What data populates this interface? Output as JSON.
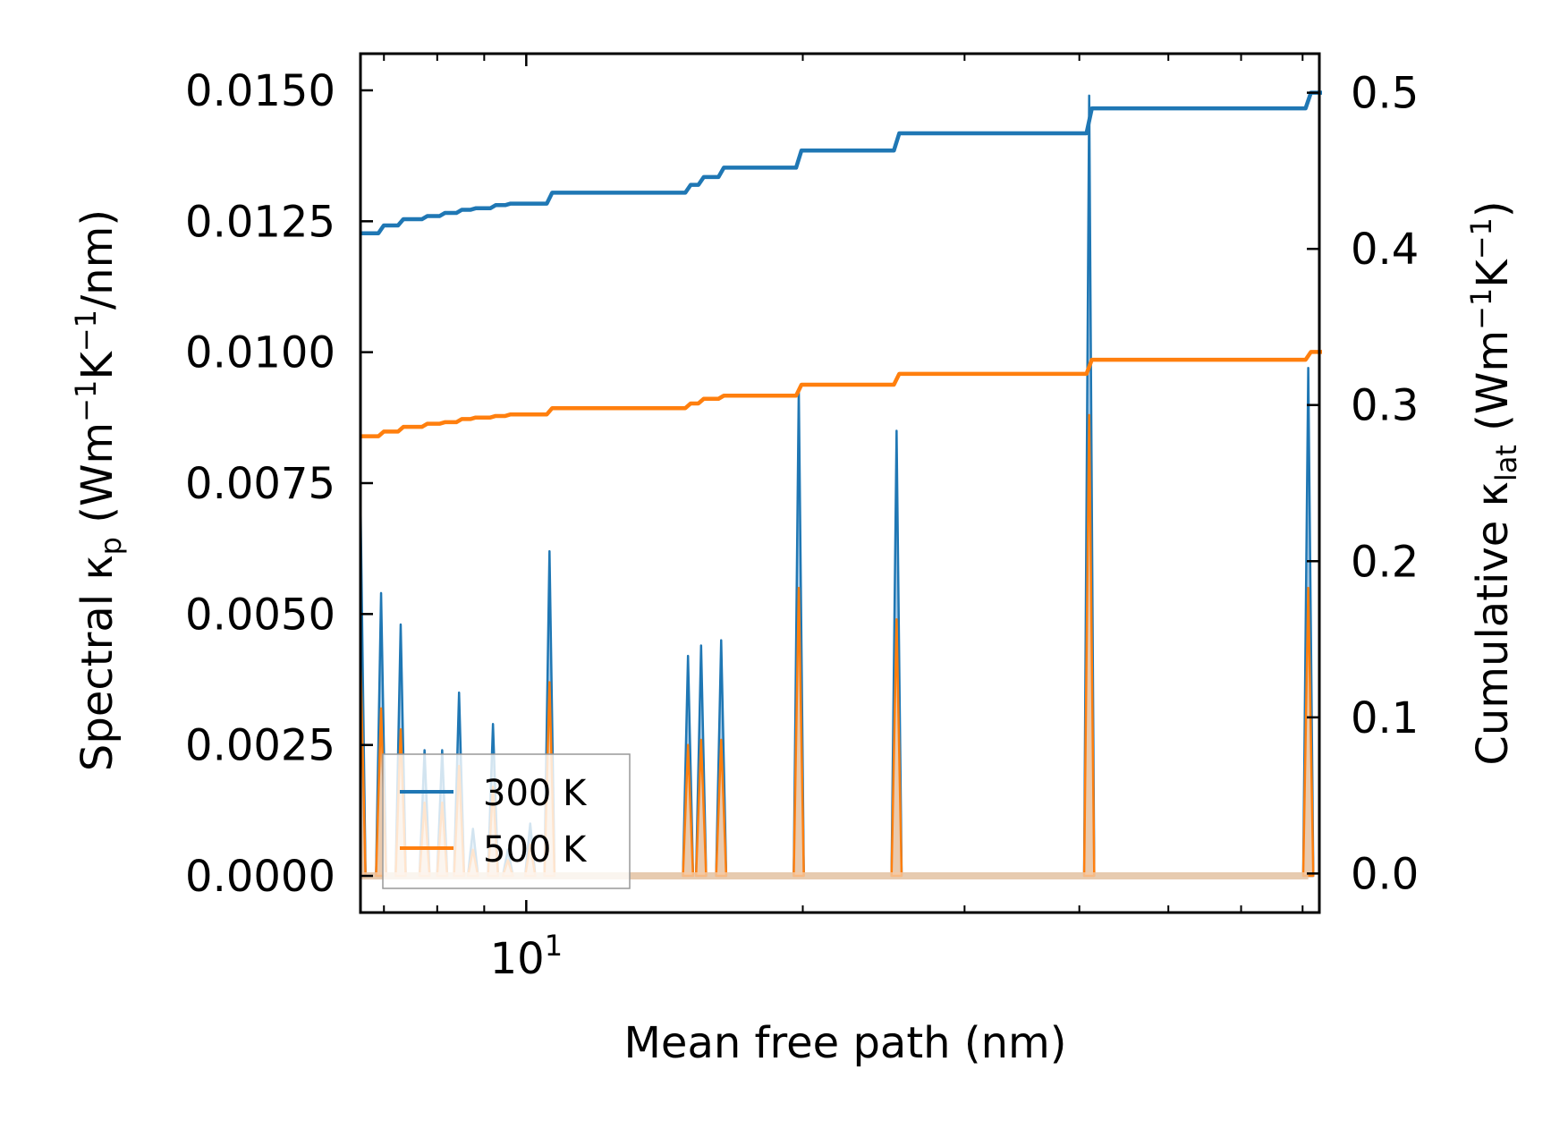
{
  "chart_data": {
    "type": "line",
    "title": "",
    "xlabel": "Mean free path (nm)",
    "xscale": "log",
    "xlim": [
      6.6,
      73
    ],
    "x_major_tick": {
      "value": 10,
      "base": "10",
      "exp": "1"
    },
    "x_minor_ticks": [
      7,
      8,
      9,
      20,
      30,
      40,
      50,
      60,
      70
    ],
    "ylabel_left": {
      "pre": "Spectral κ",
      "sub": "p",
      "post": " (Wm",
      "sup1": "−1",
      "mid": "K",
      "sup2": "−1",
      "tail": "/nm)"
    },
    "ylim_left": [
      -0.0007,
      0.0157
    ],
    "yticks_left": [
      "0.0000",
      "0.0025",
      "0.0050",
      "0.0075",
      "0.0100",
      "0.0125",
      "0.0150"
    ],
    "ylabel_right": {
      "pre": "Cumulative κ",
      "sub": "lat",
      "post": " (Wm",
      "sup1": "−1",
      "mid": "K",
      "sup2": "−1",
      "tail": ")"
    },
    "ylim_right": [
      -0.025,
      0.525
    ],
    "yticks_right": [
      "0.0",
      "0.1",
      "0.2",
      "0.3",
      "0.4",
      "0.5"
    ],
    "legend": {
      "position": "lower left",
      "entries": [
        "300 K",
        "500 K"
      ]
    },
    "colors": {
      "300 K": "#1f77b4",
      "500 K": "#ff7f0e",
      "fill_300": "#9dc3e0",
      "fill_500": "#f5c9a3"
    },
    "spectral_peaks": {
      "300 K": [
        [
          6.6,
          0.0072
        ],
        [
          6.95,
          0.0054
        ],
        [
          7.3,
          0.0048
        ],
        [
          7.75,
          0.0024
        ],
        [
          8.1,
          0.0024
        ],
        [
          8.45,
          0.0035
        ],
        [
          8.75,
          0.0009
        ],
        [
          9.2,
          0.0029
        ],
        [
          9.55,
          0.0005
        ],
        [
          10.1,
          0.001
        ],
        [
          10.6,
          0.0062
        ],
        [
          15.0,
          0.0042
        ],
        [
          15.5,
          0.0044
        ],
        [
          16.3,
          0.0045
        ],
        [
          19.8,
          0.0093
        ],
        [
          25.3,
          0.0085
        ],
        [
          41.0,
          0.0149
        ],
        [
          71.0,
          0.0097
        ]
      ],
      "500 K": [
        [
          6.6,
          0.0042
        ],
        [
          6.95,
          0.0032
        ],
        [
          7.3,
          0.0028
        ],
        [
          7.75,
          0.0014
        ],
        [
          8.1,
          0.0014
        ],
        [
          8.45,
          0.0021
        ],
        [
          8.75,
          0.0005
        ],
        [
          9.2,
          0.0017
        ],
        [
          9.55,
          0.0003
        ],
        [
          10.1,
          0.0006
        ],
        [
          10.6,
          0.0037
        ],
        [
          15.0,
          0.0025
        ],
        [
          15.5,
          0.0026
        ],
        [
          16.3,
          0.0026
        ],
        [
          19.8,
          0.0055
        ],
        [
          25.3,
          0.0049
        ],
        [
          41.0,
          0.0088
        ],
        [
          71.0,
          0.0055
        ]
      ]
    },
    "cumulative": {
      "300 K": [
        [
          6.6,
          0.41
        ],
        [
          6.95,
          0.415
        ],
        [
          7.3,
          0.419
        ],
        [
          7.75,
          0.421
        ],
        [
          8.1,
          0.423
        ],
        [
          8.45,
          0.425
        ],
        [
          8.75,
          0.426
        ],
        [
          9.2,
          0.428
        ],
        [
          9.55,
          0.429
        ],
        [
          10.6,
          0.436
        ],
        [
          15.0,
          0.441
        ],
        [
          15.5,
          0.446
        ],
        [
          16.3,
          0.452
        ],
        [
          19.8,
          0.463
        ],
        [
          25.3,
          0.474
        ],
        [
          41.0,
          0.49
        ],
        [
          71.0,
          0.5
        ],
        [
          73.0,
          0.5
        ]
      ],
      "500 K": [
        [
          6.6,
          0.28
        ],
        [
          6.95,
          0.283
        ],
        [
          7.3,
          0.286
        ],
        [
          7.75,
          0.288
        ],
        [
          8.1,
          0.289
        ],
        [
          8.45,
          0.291
        ],
        [
          8.75,
          0.292
        ],
        [
          9.2,
          0.293
        ],
        [
          9.55,
          0.294
        ],
        [
          10.6,
          0.298
        ],
        [
          15.0,
          0.301
        ],
        [
          15.5,
          0.304
        ],
        [
          16.3,
          0.306
        ],
        [
          19.8,
          0.313
        ],
        [
          25.3,
          0.32
        ],
        [
          41.0,
          0.329
        ],
        [
          71.0,
          0.334
        ],
        [
          73.0,
          0.334
        ]
      ]
    }
  }
}
